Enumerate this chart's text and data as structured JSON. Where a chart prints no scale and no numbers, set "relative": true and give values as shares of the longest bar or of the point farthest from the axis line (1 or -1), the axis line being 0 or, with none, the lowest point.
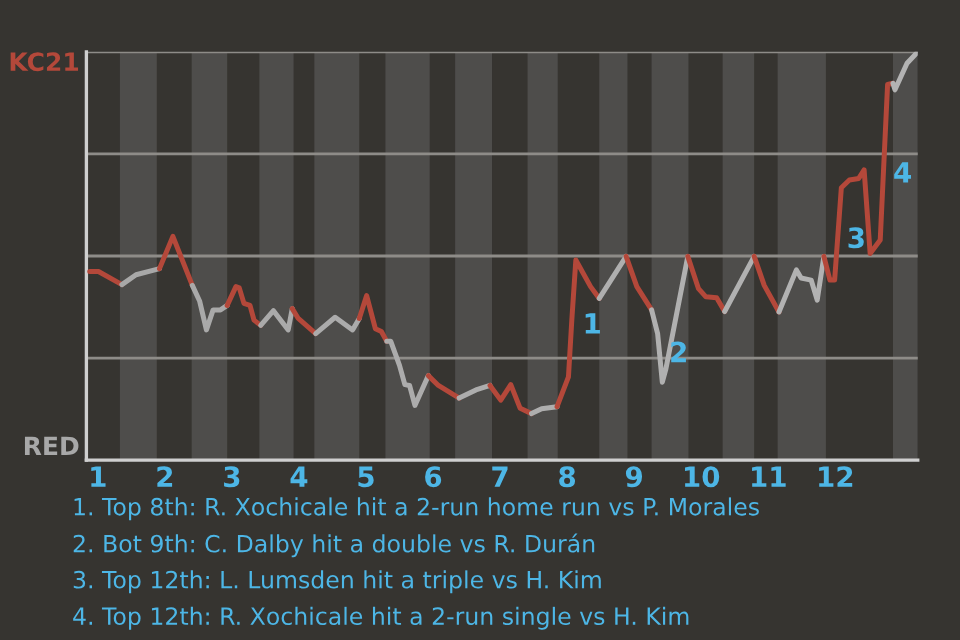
{
  "chart_data": {
    "type": "line",
    "relative": true,
    "series": [
      {
        "color": "#b4483a",
        "x": [
          0.88,
          1.01,
          1.36
        ],
        "values": [
          0.462,
          0.462,
          0.43
        ]
      },
      {
        "color": "#a8a8a8",
        "x": [
          1.36,
          1.57,
          1.85,
          1.92
        ],
        "values": [
          0.43,
          0.454,
          0.466,
          0.469
        ]
      },
      {
        "color": "#b4483a",
        "x": [
          1.92,
          2.12,
          2.41
        ],
        "values": [
          0.469,
          0.548,
          0.428
        ]
      },
      {
        "color": "#a9a9a9",
        "x": [
          2.41,
          2.52,
          2.62,
          2.72,
          2.83,
          2.93
        ],
        "values": [
          0.428,
          0.389,
          0.319,
          0.368,
          0.368,
          0.379
        ]
      },
      {
        "color": "#b4483a",
        "x": [
          2.93,
          3.06,
          3.11,
          3.18,
          3.27,
          3.33,
          3.43
        ],
        "values": [
          0.379,
          0.425,
          0.422,
          0.384,
          0.379,
          0.343,
          0.33
        ]
      },
      {
        "color": "#aaaaaa",
        "x": [
          3.43,
          3.62,
          3.84,
          3.9
        ],
        "values": [
          0.33,
          0.366,
          0.319,
          0.371
        ]
      },
      {
        "color": "#b4483a",
        "x": [
          3.9,
          3.99,
          4.25
        ],
        "values": [
          0.371,
          0.347,
          0.31
        ]
      },
      {
        "color": "#ababab",
        "x": [
          4.25,
          4.54,
          4.8,
          4.9
        ],
        "values": [
          0.31,
          0.35,
          0.319,
          0.347
        ]
      },
      {
        "color": "#b4483a",
        "x": [
          4.9,
          5.01,
          5.14,
          5.23,
          5.31
        ],
        "values": [
          0.347,
          0.403,
          0.322,
          0.315,
          0.291
        ]
      },
      {
        "color": "#acacac",
        "x": [
          5.31,
          5.37,
          5.5,
          5.58,
          5.65,
          5.73,
          5.93
        ],
        "values": [
          0.291,
          0.291,
          0.232,
          0.185,
          0.183,
          0.134,
          0.207
        ]
      },
      {
        "color": "#b4483a",
        "x": [
          5.93,
          6.08,
          6.39
        ],
        "values": [
          0.207,
          0.183,
          0.152
        ]
      },
      {
        "color": "#adadad",
        "x": [
          6.39,
          6.64,
          6.85
        ],
        "values": [
          0.152,
          0.172,
          0.183
        ]
      },
      {
        "color": "#b4483a",
        "x": [
          6.85,
          7.01,
          7.16,
          7.3,
          7.47
        ],
        "values": [
          0.183,
          0.147,
          0.185,
          0.127,
          0.114
        ]
      },
      {
        "color": "#aeaeae",
        "x": [
          7.47,
          7.62,
          7.85
        ],
        "values": [
          0.114,
          0.126,
          0.131
        ]
      },
      {
        "color": "#b4483a",
        "x": [
          7.85,
          8.02,
          8.07,
          8.13,
          8.35,
          8.48
        ],
        "values": [
          0.131,
          0.204,
          0.343,
          0.49,
          0.425,
          0.396
        ]
      },
      {
        "color": "#afafaf",
        "x": [
          8.48,
          8.88
        ],
        "values": [
          0.396,
          0.499
        ]
      },
      {
        "color": "#b4483a",
        "x": [
          8.88,
          9.04,
          9.26
        ],
        "values": [
          0.499,
          0.425,
          0.368
        ]
      },
      {
        "color": "#b0b0b0",
        "x": [
          9.26,
          9.35,
          9.42,
          9.47,
          9.8
        ],
        "values": [
          0.368,
          0.31,
          0.191,
          0.221,
          0.499
        ]
      },
      {
        "color": "#b4483a",
        "x": [
          9.8,
          9.96,
          10.07,
          10.23,
          10.35
        ],
        "values": [
          0.499,
          0.42,
          0.4,
          0.398,
          0.364
        ]
      },
      {
        "color": "#b1b1b1",
        "x": [
          10.35,
          10.79
        ],
        "values": [
          0.364,
          0.499
        ]
      },
      {
        "color": "#b4483a",
        "x": [
          10.79,
          10.94,
          11.16
        ],
        "values": [
          0.499,
          0.428,
          0.363
        ]
      },
      {
        "color": "#b2b2b2",
        "x": [
          11.16,
          11.42,
          11.49,
          11.64,
          11.73,
          11.83
        ],
        "values": [
          0.363,
          0.466,
          0.446,
          0.441,
          0.392,
          0.499
        ]
      },
      {
        "color": "#b4483a",
        "x": [
          11.83,
          11.92,
          11.99,
          12.09,
          12.21,
          12.35,
          12.43,
          12.52,
          12.67,
          12.78,
          12.86
        ],
        "values": [
          0.499,
          0.441,
          0.441,
          0.667,
          0.686,
          0.69,
          0.711,
          0.506,
          0.539,
          0.92,
          0.923
        ]
      },
      {
        "color": "#b3b3b3",
        "x": [
          12.86,
          12.89,
          13.07,
          13.23
        ],
        "values": [
          0.923,
          0.907,
          0.972,
          1
        ]
      }
    ],
    "xlim": [
      0.83,
      13.23
    ],
    "xticks": [
      1,
      2,
      3,
      4,
      5,
      6,
      7,
      8,
      9,
      10,
      11,
      12
    ],
    "ref_lines": [
      {
        "axis": "y",
        "value": 0.25,
        "color": "#8e8c88"
      },
      {
        "axis": "y",
        "value": 0.5,
        "color": "#8e8c88"
      },
      {
        "axis": "y",
        "value": 0.75,
        "color": "#8e8c88"
      },
      {
        "axis": "y",
        "value": 1,
        "color": "#8e8c88"
      }
    ],
    "bands": [
      {
        "axis": "x",
        "from": 1.33,
        "to": 1.88,
        "color": "#4e4d4b"
      },
      {
        "axis": "x",
        "from": 2.4,
        "to": 2.93,
        "color": "#4e4d4b"
      },
      {
        "axis": "x",
        "from": 3.41,
        "to": 3.92,
        "color": "#4e4d4b"
      },
      {
        "axis": "x",
        "from": 4.23,
        "to": 4.9,
        "color": "#4e4d4b"
      },
      {
        "axis": "x",
        "from": 5.29,
        "to": 5.95,
        "color": "#4e4d4b"
      },
      {
        "axis": "x",
        "from": 6.33,
        "to": 6.88,
        "color": "#4e4d4b"
      },
      {
        "axis": "x",
        "from": 7.41,
        "to": 7.86,
        "color": "#4e4d4b"
      },
      {
        "axis": "x",
        "from": 8.48,
        "to": 8.9,
        "color": "#4e4d4b"
      },
      {
        "axis": "x",
        "from": 9.26,
        "to": 9.81,
        "color": "#4e4d4b"
      },
      {
        "axis": "x",
        "from": 10.32,
        "to": 10.79,
        "color": "#4e4d4b"
      },
      {
        "axis": "x",
        "from": 11.14,
        "to": 11.86,
        "color": "#4e4d4b"
      },
      {
        "axis": "x",
        "from": 12.86,
        "to": 13.23,
        "color": "#4e4d4b"
      }
    ],
    "annotations": [
      "KC21",
      "RED",
      {
        "text": "1",
        "x": 8.23,
        "y": 0.31
      },
      {
        "text": "2",
        "x": 9.52,
        "y": 0.24
      },
      {
        "text": "3",
        "x": 12.17,
        "y": 0.52
      },
      {
        "text": "4",
        "x": 12.86,
        "y": 0.68
      },
      "1. Top 8th: R. Xochicale hit a 2-run home run vs P. Morales",
      "2. Bot 9th: C. Dalby hit a double vs R. Durán",
      "3. Top 12th: L. Lumsden hit a triple vs H. Kim",
      "4. Top 12th: R. Xochicale hit a 2-run single vs H. Kim"
    ]
  }
}
